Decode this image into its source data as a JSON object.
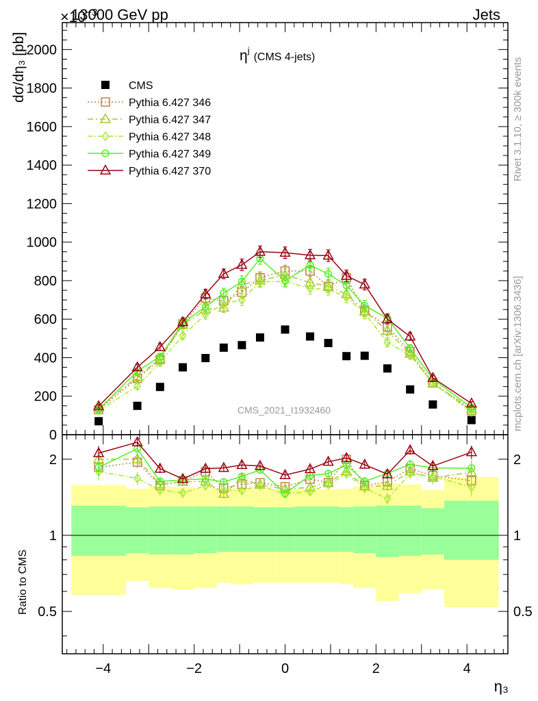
{
  "header": {
    "left": "13000 GeV pp",
    "right": "Jets",
    "exponent": "×10",
    "exponent_power": "−3"
  },
  "side_labels": {
    "rivet": "Rivet 3.1.10, ≥ 300k events",
    "mcplots": "mcplots.cern.ch [arXiv:1306.3436]"
  },
  "watermark": "CMS_2021_I1932460",
  "chart_data": {
    "type": "scatter",
    "title": "η^j (CMS 4-jets)",
    "title_main": "η",
    "title_sup": "j",
    "title_tail": "(CMS 4-jets)",
    "xlabel": "η₃",
    "ylabel": "dσ/dη₃ [pb]",
    "ratio_ylabel": "Ratio to CMS",
    "xlim": [
      -4.9,
      4.9
    ],
    "ylim": [
      0,
      2140
    ],
    "ratio_ylim": [
      0.34,
      2.5
    ],
    "ratio_scale": "log",
    "x_ticks": [
      -4,
      -2,
      0,
      2,
      4
    ],
    "x_tick_labels": [
      "−4",
      "−2",
      "0",
      "2",
      "4"
    ],
    "y_ticks": [
      0,
      200,
      400,
      600,
      800,
      1000,
      1200,
      1400,
      1600,
      1800,
      2000
    ],
    "ratio_ticks": [
      0.5,
      1,
      2
    ],
    "x": [
      -4.1,
      -3.25,
      -2.75,
      -2.25,
      -1.75,
      -1.35,
      -0.95,
      -0.55,
      0.0,
      0.55,
      0.95,
      1.35,
      1.75,
      2.25,
      2.75,
      3.25,
      4.1
    ],
    "bin_edges": [
      -4.7,
      -3.5,
      -3.0,
      -2.5,
      -2.0,
      -1.5,
      -1.2,
      -0.7,
      -0.2,
      0.2,
      0.7,
      1.2,
      1.5,
      2.0,
      2.5,
      3.0,
      3.5,
      4.7
    ],
    "band_inner": [
      [
        0.83,
        1.31
      ],
      [
        0.85,
        1.29
      ],
      [
        0.84,
        1.3
      ],
      [
        0.84,
        1.3
      ],
      [
        0.85,
        1.3
      ],
      [
        0.86,
        1.3
      ],
      [
        0.86,
        1.3
      ],
      [
        0.86,
        1.29
      ],
      [
        0.86,
        1.29
      ],
      [
        0.86,
        1.3
      ],
      [
        0.86,
        1.3
      ],
      [
        0.86,
        1.29
      ],
      [
        0.85,
        1.3
      ],
      [
        0.82,
        1.31
      ],
      [
        0.83,
        1.31
      ],
      [
        0.84,
        1.28
      ],
      [
        0.8,
        1.37
      ]
    ],
    "band_outer": [
      [
        0.58,
        1.58
      ],
      [
        0.66,
        1.53
      ],
      [
        0.62,
        1.56
      ],
      [
        0.61,
        1.55
      ],
      [
        0.62,
        1.53
      ],
      [
        0.65,
        1.52
      ],
      [
        0.64,
        1.53
      ],
      [
        0.65,
        1.52
      ],
      [
        0.65,
        1.51
      ],
      [
        0.65,
        1.52
      ],
      [
        0.65,
        1.52
      ],
      [
        0.64,
        1.53
      ],
      [
        0.62,
        1.56
      ],
      [
        0.55,
        1.6
      ],
      [
        0.59,
        1.59
      ],
      [
        0.61,
        1.51
      ],
      [
        0.52,
        1.7
      ]
    ],
    "series": [
      {
        "name": "CMS",
        "color": "#000000",
        "marker": "square-filled",
        "dash": "",
        "legend_marker_only": true,
        "values": [
          70,
          150,
          248,
          350,
          398,
          452,
          465,
          505,
          546,
          510,
          476,
          408,
          410,
          344,
          235,
          157,
          76
        ],
        "errors": [
          0,
          0,
          0,
          0,
          0,
          0,
          0,
          0,
          0,
          0,
          0,
          0,
          0,
          0,
          0,
          0,
          0
        ]
      },
      {
        "name": "Pythia 6.427 346",
        "color": "#b8864a",
        "marker": "square-open",
        "dash": "2,3",
        "values": [
          130,
          292,
          390,
          575,
          710,
          695,
          740,
          815,
          850,
          850,
          770,
          815,
          645,
          560,
          432,
          270,
          125
        ],
        "errors": [
          10,
          15,
          18,
          22,
          25,
          25,
          30,
          30,
          30,
          30,
          30,
          30,
          28,
          25,
          20,
          15,
          10
        ]
      },
      {
        "name": "Pythia 6.427 347",
        "color": "#a6c828",
        "marker": "triangle-open",
        "dash": "8,4,2,4",
        "values": [
          140,
          300,
          395,
          570,
          650,
          660,
          780,
          800,
          830,
          790,
          770,
          730,
          640,
          540,
          420,
          265,
          135
        ],
        "errors": [
          10,
          15,
          18,
          22,
          25,
          25,
          30,
          30,
          30,
          30,
          30,
          30,
          28,
          25,
          20,
          15,
          10
        ]
      },
      {
        "name": "Pythia 6.427 348",
        "color": "#a6e830",
        "marker": "diamond-open",
        "dash": "7,3,2,3",
        "values": [
          125,
          252,
          375,
          515,
          625,
          680,
          700,
          795,
          795,
          760,
          755,
          715,
          630,
          480,
          412,
          268,
          118
        ],
        "errors": [
          10,
          15,
          18,
          22,
          25,
          25,
          30,
          30,
          30,
          30,
          30,
          30,
          28,
          25,
          20,
          15,
          10
        ]
      },
      {
        "name": "Pythia 6.427 349",
        "color": "#55ee22",
        "marker": "circle-open",
        "dash": "",
        "values": [
          130,
          330,
          405,
          580,
          665,
          735,
          795,
          915,
          800,
          880,
          835,
          775,
          670,
          605,
          448,
          290,
          140
        ],
        "errors": [
          10,
          15,
          18,
          22,
          25,
          25,
          30,
          30,
          30,
          30,
          30,
          30,
          28,
          25,
          20,
          15,
          10
        ]
      },
      {
        "name": "Pythia 6.427 370",
        "color": "#990011",
        "marker": "triangle-open",
        "dash": "",
        "values": [
          148,
          350,
          455,
          585,
          730,
          835,
          882,
          950,
          945,
          932,
          930,
          825,
          780,
          600,
          510,
          295,
          162
        ],
        "errors": [
          10,
          15,
          18,
          22,
          25,
          25,
          30,
          30,
          30,
          30,
          30,
          30,
          28,
          25,
          20,
          15,
          10
        ]
      }
    ]
  }
}
